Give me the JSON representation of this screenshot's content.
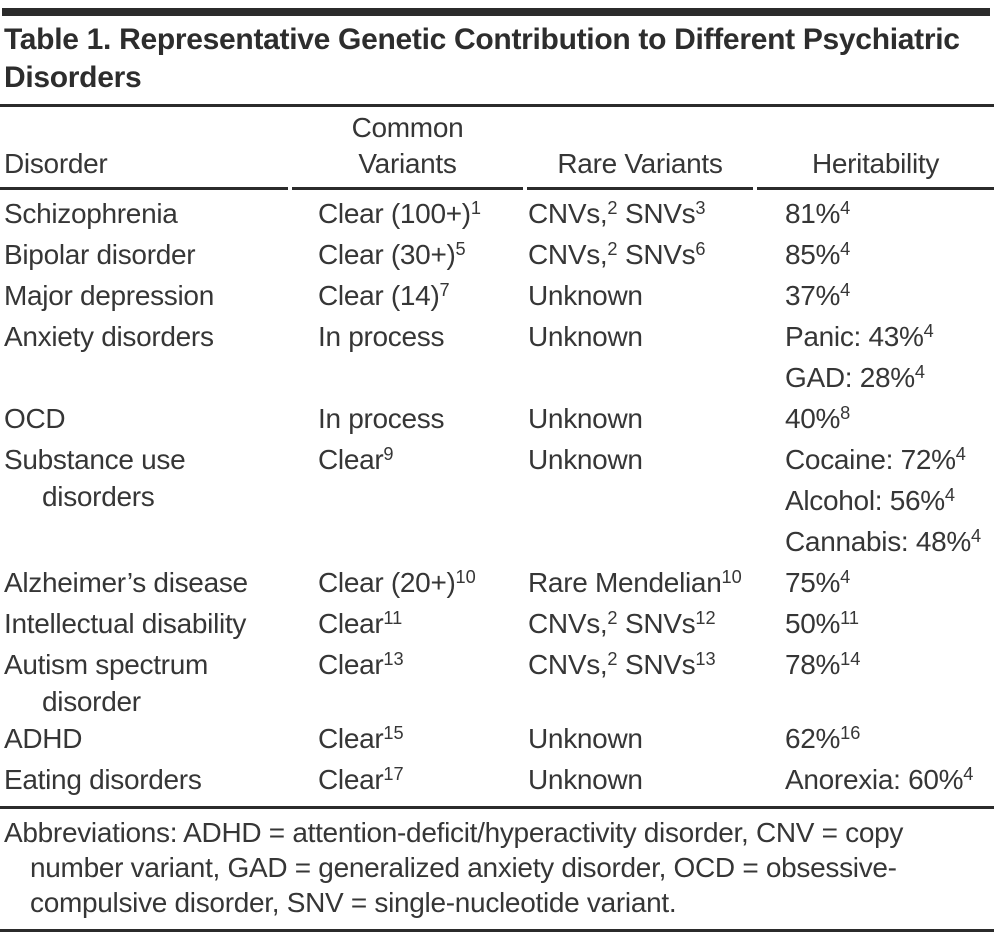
{
  "title": "Table 1. Representative Genetic Contribution to Different Psychiatric Disorders",
  "table": {
    "columns": [
      {
        "label": "Disorder"
      },
      {
        "label": "Common\nVariants"
      },
      {
        "label": "Rare Variants"
      },
      {
        "label": "Heritability"
      }
    ],
    "rows": [
      {
        "disorder": [
          "Schizophrenia"
        ],
        "common": "Clear (100+)^1",
        "rare": "CNVs,^2 SNVs^3",
        "herit": [
          "81%^4"
        ]
      },
      {
        "disorder": [
          "Bipolar disorder"
        ],
        "common": "Clear (30+)^5",
        "rare": "CNVs,^2 SNVs^6",
        "herit": [
          "85%^4"
        ]
      },
      {
        "disorder": [
          "Major depression"
        ],
        "common": "Clear (14)^7",
        "rare": "Unknown",
        "herit": [
          "37%^4"
        ]
      },
      {
        "disorder": [
          "Anxiety disorders"
        ],
        "common": "In process",
        "rare": "Unknown",
        "herit": [
          "Panic: 43%^4",
          "GAD: 28%^4"
        ]
      },
      {
        "disorder": [
          "OCD"
        ],
        "common": "In process",
        "rare": "Unknown",
        "herit": [
          "40%^8"
        ]
      },
      {
        "disorder": [
          "Substance use",
          "disorders"
        ],
        "common": "Clear^9",
        "rare": "Unknown",
        "herit": [
          "Cocaine: 72%^4",
          "Alcohol: 56%^4",
          "Cannabis: 48%^4"
        ]
      },
      {
        "disorder": [
          "Alzheimer’s disease"
        ],
        "common": "Clear (20+)^10",
        "rare": "Rare Mendelian^10",
        "herit": [
          "75%^4"
        ]
      },
      {
        "disorder": [
          "Intellectual disability"
        ],
        "common": "Clear^11",
        "rare": "CNVs,^2 SNVs^12",
        "herit": [
          "50%^11"
        ]
      },
      {
        "disorder": [
          "Autism spectrum",
          "disorder"
        ],
        "common": "Clear^13",
        "rare": "CNVs,^2 SNVs^13",
        "herit": [
          "78%^14"
        ]
      },
      {
        "disorder": [
          "ADHD"
        ],
        "common": "Clear^15",
        "rare": "Unknown",
        "herit": [
          "62%^16"
        ]
      },
      {
        "disorder": [
          "Eating disorders"
        ],
        "common": "Clear^17",
        "rare": "Unknown",
        "herit": [
          "Anorexia: 60%^4"
        ]
      }
    ]
  },
  "footnote_lines": [
    "Abbreviations: ADHD = attention-deficit/hyperactivity disorder, CNV = copy",
    "number variant, GAD = generalized anxiety disorder, OCD = obsessive-",
    "compulsive disorder, SNV = single-nucleotide variant."
  ],
  "colors": {
    "text": "#363636",
    "rule": "#2b2b2b",
    "background": "#ffffff"
  }
}
